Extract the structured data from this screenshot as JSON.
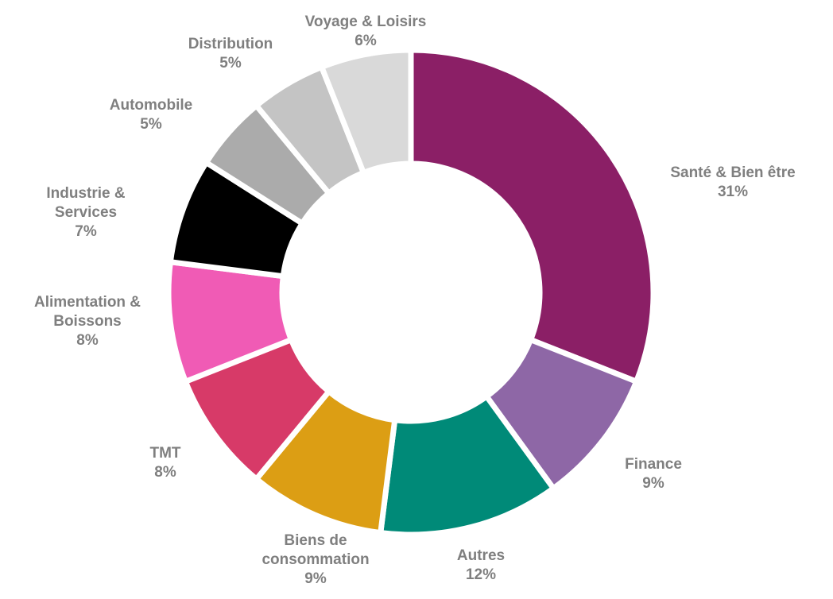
{
  "chart_data": {
    "type": "donut",
    "categories": [
      "Santé & Bien être",
      "Finance",
      "Autres",
      "Biens de consommation",
      "TMT",
      "Alimentation & Boissons",
      "Industrie & Services",
      "Automobile",
      "Distribution",
      "Voyage & Loisirs"
    ],
    "values": [
      31,
      9,
      12,
      9,
      8,
      8,
      7,
      5,
      5,
      6
    ],
    "value_labels": [
      "31%",
      "9%",
      "12%",
      "9%",
      "8%",
      "8%",
      "7%",
      "5%",
      "5%",
      "6%"
    ],
    "colors": [
      "#8b1f66",
      "#8e67a6",
      "#008a78",
      "#dc9e14",
      "#d73a68",
      "#f05bb5",
      "#000000",
      "#ababab",
      "#c4c4c4",
      "#d9d9d9"
    ]
  }
}
